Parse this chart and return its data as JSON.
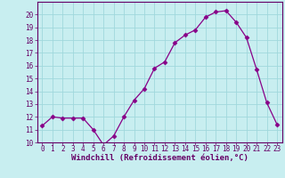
{
  "x": [
    0,
    1,
    2,
    3,
    4,
    5,
    6,
    7,
    8,
    9,
    10,
    11,
    12,
    13,
    14,
    15,
    16,
    17,
    18,
    19,
    20,
    21,
    22,
    23
  ],
  "y": [
    11.3,
    12.0,
    11.9,
    11.9,
    11.9,
    11.0,
    9.8,
    10.5,
    12.0,
    13.3,
    14.2,
    15.8,
    16.3,
    17.8,
    18.4,
    18.8,
    19.8,
    20.2,
    20.3,
    19.4,
    18.2,
    15.7,
    13.1,
    11.4
  ],
  "line_color": "#880088",
  "marker": "D",
  "markersize": 2.5,
  "bg_color": "#c8eef0",
  "grid_color": "#a0d8dc",
  "xlabel": "Windchill (Refroidissement éolien,°C)",
  "ylim": [
    10,
    21
  ],
  "xlim": [
    -0.5,
    23.5
  ],
  "yticks": [
    10,
    11,
    12,
    13,
    14,
    15,
    16,
    17,
    18,
    19,
    20
  ],
  "xticks": [
    0,
    1,
    2,
    3,
    4,
    5,
    6,
    7,
    8,
    9,
    10,
    11,
    12,
    13,
    14,
    15,
    16,
    17,
    18,
    19,
    20,
    21,
    22,
    23
  ],
  "tick_color": "#660066",
  "tick_fontsize": 5.5,
  "xlabel_fontsize": 6.5,
  "spine_color": "#660066"
}
